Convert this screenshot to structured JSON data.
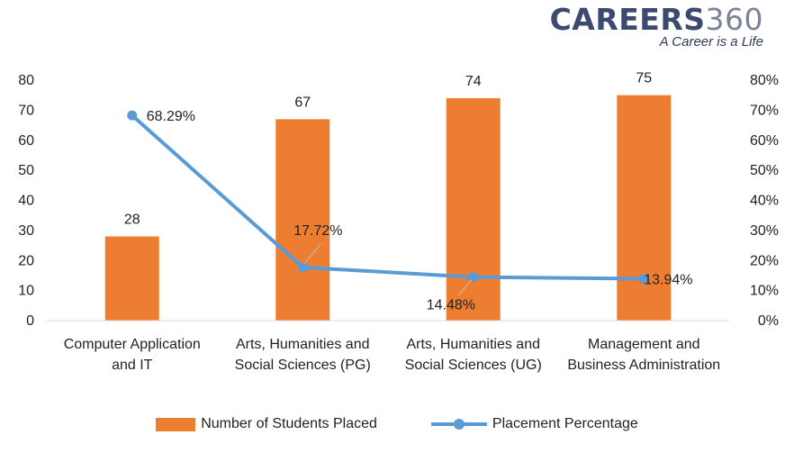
{
  "brand": {
    "name": "CAREERS",
    "number": "360",
    "tagline": "A Career is a Life"
  },
  "chart_data": {
    "type": "bar",
    "categories": [
      [
        "Computer Application",
        "and IT"
      ],
      [
        "Arts, Humanities and",
        "Social Sciences (PG)"
      ],
      [
        "Arts, Humanities and",
        "Social Sciences (UG)"
      ],
      [
        "Management and",
        "Business Administration"
      ]
    ],
    "series": [
      {
        "name": "Number of Students Placed",
        "type": "bar",
        "axis": "left",
        "values": [
          28,
          67,
          74,
          75
        ],
        "labels": [
          "28",
          "67",
          "74",
          "75"
        ],
        "color": "#ed7d31"
      },
      {
        "name": "Placement Percentage",
        "type": "line",
        "axis": "right",
        "values": [
          68.29,
          17.72,
          14.48,
          13.94
        ],
        "labels": [
          "68.29%",
          "17.72%",
          "14.48%",
          "13.94%"
        ],
        "color": "#5b9bd5"
      }
    ],
    "y_left": {
      "min": 0,
      "max": 80,
      "ticks": [
        "0",
        "10",
        "20",
        "30",
        "40",
        "50",
        "60",
        "70",
        "80"
      ]
    },
    "y_right": {
      "min": 0,
      "max": 80,
      "ticks": [
        "0%",
        "10%",
        "20%",
        "30%",
        "40%",
        "50%",
        "60%",
        "70%",
        "80%"
      ]
    },
    "grid": false,
    "legend": "bottom"
  }
}
